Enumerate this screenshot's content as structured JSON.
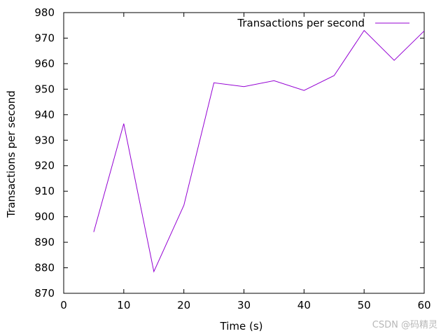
{
  "chart_data": {
    "type": "line",
    "title": "",
    "xlabel": "Time (s)",
    "ylabel": "Transactions per second",
    "xlim": [
      0,
      60
    ],
    "ylim": [
      870,
      980
    ],
    "xticks": [
      0,
      10,
      20,
      30,
      40,
      50,
      60
    ],
    "yticks": [
      870,
      880,
      890,
      900,
      910,
      920,
      930,
      940,
      950,
      960,
      970,
      980
    ],
    "grid": false,
    "legend": "top-right",
    "series": [
      {
        "name": "Transactions per second",
        "color": "#9400d3",
        "x": [
          5,
          10,
          15,
          20,
          25,
          30,
          35,
          40,
          45,
          50,
          55,
          60
        ],
        "y": [
          894.0,
          936.5,
          878.5,
          904.5,
          952.5,
          951.0,
          953.3,
          949.5,
          955.3,
          973.0,
          961.3,
          972.8
        ]
      }
    ]
  },
  "watermark": "CSDN @码精灵"
}
